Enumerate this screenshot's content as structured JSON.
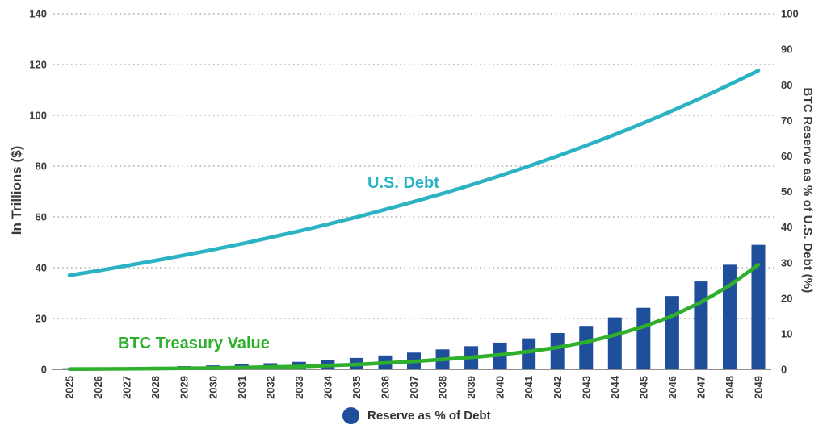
{
  "chart_data": {
    "type": "combo",
    "title": "",
    "x_categories": [
      "2025",
      "2026",
      "2027",
      "2028",
      "2029",
      "2030",
      "2031",
      "2032",
      "2033",
      "2034",
      "2035",
      "2036",
      "2037",
      "2038",
      "2039",
      "2040",
      "2041",
      "2042",
      "2043",
      "2044",
      "2045",
      "2046",
      "2047",
      "2048",
      "2049"
    ],
    "series": [
      {
        "name": "U.S. Debt",
        "type": "line",
        "axis": "left",
        "color": "#2bb3c4",
        "values": [
          37.0,
          38.8,
          40.8,
          42.8,
          44.9,
          47.1,
          49.4,
          51.9,
          54.4,
          57.1,
          59.9,
          62.9,
          66.0,
          69.2,
          72.6,
          76.2,
          80.0,
          83.9,
          88.1,
          92.4,
          97.0,
          101.8,
          106.8,
          112.1,
          117.6
        ]
      },
      {
        "name": "BTC Treasury Value",
        "type": "line",
        "axis": "left",
        "color": "#2fb02c",
        "values": [
          0.1,
          0.15,
          0.2,
          0.3,
          0.4,
          0.5,
          0.7,
          0.9,
          1.1,
          1.5,
          1.9,
          2.5,
          3.1,
          3.9,
          4.7,
          5.7,
          7.0,
          8.6,
          10.7,
          13.5,
          16.8,
          21.0,
          26.4,
          33.0,
          41.2
        ]
      },
      {
        "name": "Reserve as % of Debt",
        "type": "bar",
        "axis": "right",
        "color": "#1f4e9a",
        "values": [
          0.3,
          0.4,
          0.5,
          0.7,
          0.9,
          1.1,
          1.4,
          1.7,
          2.1,
          2.6,
          3.2,
          3.9,
          4.7,
          5.6,
          6.5,
          7.5,
          8.7,
          10.2,
          12.2,
          14.6,
          17.3,
          20.6,
          24.7,
          29.4,
          35.0
        ]
      }
    ],
    "left_axis": {
      "title": "In Trillions ($)",
      "min": 0,
      "max": 140,
      "tick_step": 20
    },
    "right_axis": {
      "title": "BTC Reserve as % of U.S. Debt (%)",
      "min": 0,
      "max": 100,
      "tick_step": 10
    },
    "grid": "horizontal-dotted",
    "annotations": [
      {
        "text": "U.S. Debt",
        "color": "#2bb3c4"
      },
      {
        "text": "BTC Treasury Value",
        "color": "#2fb02c"
      }
    ],
    "legend": {
      "position": "bottom-center",
      "items": [
        {
          "label": "Reserve as % of Debt",
          "marker": "circle",
          "color": "#1f4e9a"
        }
      ]
    },
    "style": {
      "grid_color": "#adadad",
      "axis_line_color": "#8f8f8f",
      "tick_text_color": "#3b3b3b"
    }
  }
}
